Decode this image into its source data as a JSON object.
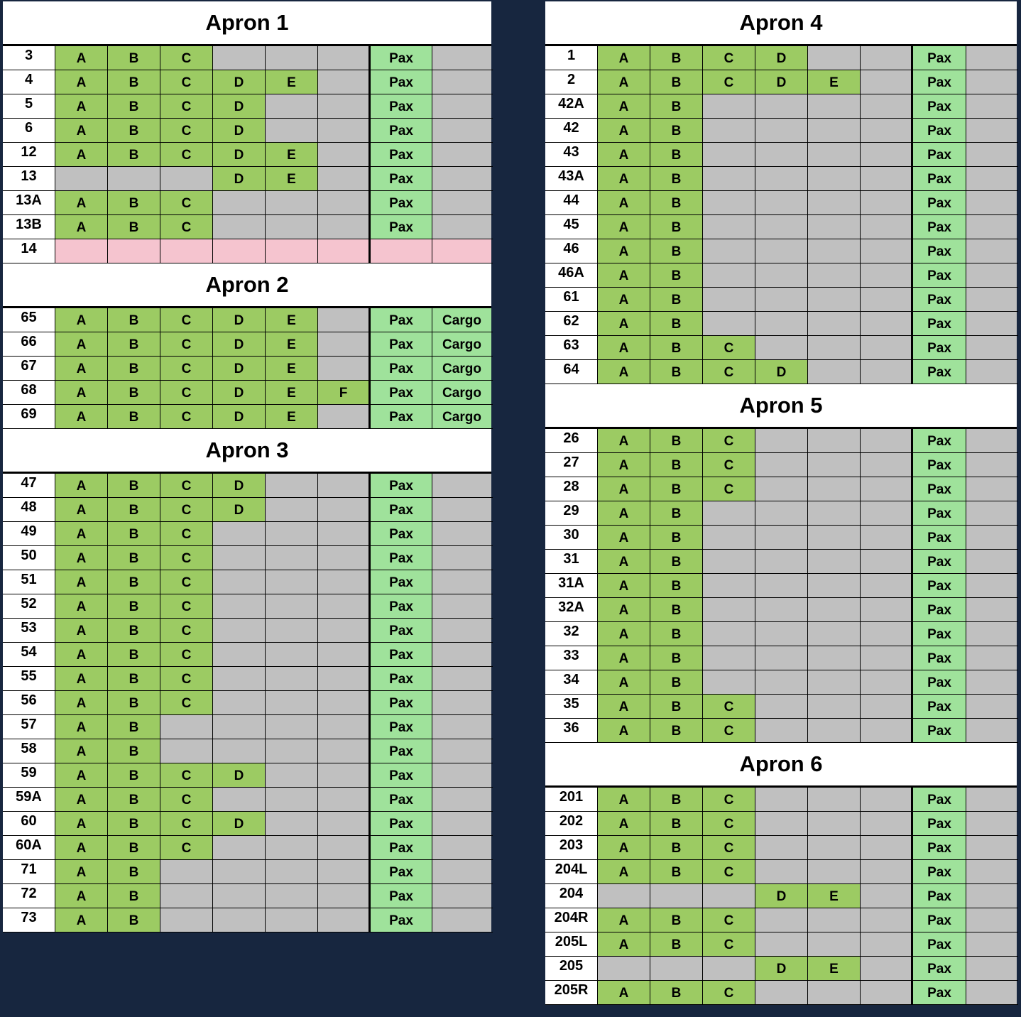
{
  "colors": {
    "background": "#17263f",
    "size_ok": "#9ccb63",
    "pax": "#9fe29b",
    "unavailable": "#c0c0c0",
    "closed": "#f5c4cf"
  },
  "aprons": [
    {
      "title": "Apron 1",
      "column": "left",
      "stands": [
        {
          "stand": "3",
          "slots": [
            "A",
            "B",
            "C",
            "",
            "",
            ""
          ],
          "pax": "Pax",
          "cargo": ""
        },
        {
          "stand": "4",
          "slots": [
            "A",
            "B",
            "C",
            "D",
            "E",
            ""
          ],
          "pax": "Pax",
          "cargo": ""
        },
        {
          "stand": "5",
          "slots": [
            "A",
            "B",
            "C",
            "D",
            "",
            ""
          ],
          "pax": "Pax",
          "cargo": ""
        },
        {
          "stand": "6",
          "slots": [
            "A",
            "B",
            "C",
            "D",
            "",
            ""
          ],
          "pax": "Pax",
          "cargo": ""
        },
        {
          "stand": "12",
          "slots": [
            "A",
            "B",
            "C",
            "D",
            "E",
            ""
          ],
          "pax": "Pax",
          "cargo": ""
        },
        {
          "stand": "13",
          "slots": [
            "",
            "",
            "",
            "D",
            "E",
            ""
          ],
          "pax": "Pax",
          "cargo": ""
        },
        {
          "stand": "13A",
          "slots": [
            "A",
            "B",
            "C",
            "",
            "",
            ""
          ],
          "pax": "Pax",
          "cargo": ""
        },
        {
          "stand": "13B",
          "slots": [
            "A",
            "B",
            "C",
            "",
            "",
            ""
          ],
          "pax": "Pax",
          "cargo": ""
        },
        {
          "stand": "14",
          "slots": [
            "",
            "",
            "",
            "",
            "",
            ""
          ],
          "pax": "",
          "cargo": "",
          "closed": true
        }
      ]
    },
    {
      "title": "Apron 2",
      "column": "left",
      "stands": [
        {
          "stand": "65",
          "slots": [
            "A",
            "B",
            "C",
            "D",
            "E",
            ""
          ],
          "pax": "Pax",
          "cargo": "Cargo"
        },
        {
          "stand": "66",
          "slots": [
            "A",
            "B",
            "C",
            "D",
            "E",
            ""
          ],
          "pax": "Pax",
          "cargo": "Cargo"
        },
        {
          "stand": "67",
          "slots": [
            "A",
            "B",
            "C",
            "D",
            "E",
            ""
          ],
          "pax": "Pax",
          "cargo": "Cargo"
        },
        {
          "stand": "68",
          "slots": [
            "A",
            "B",
            "C",
            "D",
            "E",
            "F"
          ],
          "pax": "Pax",
          "cargo": "Cargo"
        },
        {
          "stand": "69",
          "slots": [
            "A",
            "B",
            "C",
            "D",
            "E",
            ""
          ],
          "pax": "Pax",
          "cargo": "Cargo"
        }
      ]
    },
    {
      "title": "Apron 3",
      "column": "left",
      "stands": [
        {
          "stand": "47",
          "slots": [
            "A",
            "B",
            "C",
            "D",
            "",
            ""
          ],
          "pax": "Pax",
          "cargo": ""
        },
        {
          "stand": "48",
          "slots": [
            "A",
            "B",
            "C",
            "D",
            "",
            ""
          ],
          "pax": "Pax",
          "cargo": ""
        },
        {
          "stand": "49",
          "slots": [
            "A",
            "B",
            "C",
            "",
            "",
            ""
          ],
          "pax": "Pax",
          "cargo": ""
        },
        {
          "stand": "50",
          "slots": [
            "A",
            "B",
            "C",
            "",
            "",
            ""
          ],
          "pax": "Pax",
          "cargo": ""
        },
        {
          "stand": "51",
          "slots": [
            "A",
            "B",
            "C",
            "",
            "",
            ""
          ],
          "pax": "Pax",
          "cargo": ""
        },
        {
          "stand": "52",
          "slots": [
            "A",
            "B",
            "C",
            "",
            "",
            ""
          ],
          "pax": "Pax",
          "cargo": ""
        },
        {
          "stand": "53",
          "slots": [
            "A",
            "B",
            "C",
            "",
            "",
            ""
          ],
          "pax": "Pax",
          "cargo": ""
        },
        {
          "stand": "54",
          "slots": [
            "A",
            "B",
            "C",
            "",
            "",
            ""
          ],
          "pax": "Pax",
          "cargo": ""
        },
        {
          "stand": "55",
          "slots": [
            "A",
            "B",
            "C",
            "",
            "",
            ""
          ],
          "pax": "Pax",
          "cargo": ""
        },
        {
          "stand": "56",
          "slots": [
            "A",
            "B",
            "C",
            "",
            "",
            ""
          ],
          "pax": "Pax",
          "cargo": ""
        },
        {
          "stand": "57",
          "slots": [
            "A",
            "B",
            "",
            "",
            "",
            ""
          ],
          "pax": "Pax",
          "cargo": ""
        },
        {
          "stand": "58",
          "slots": [
            "A",
            "B",
            "",
            "",
            "",
            ""
          ],
          "pax": "Pax",
          "cargo": ""
        },
        {
          "stand": "59",
          "slots": [
            "A",
            "B",
            "C",
            "D",
            "",
            ""
          ],
          "pax": "Pax",
          "cargo": ""
        },
        {
          "stand": "59A",
          "slots": [
            "A",
            "B",
            "C",
            "",
            "",
            ""
          ],
          "pax": "Pax",
          "cargo": ""
        },
        {
          "stand": "60",
          "slots": [
            "A",
            "B",
            "C",
            "D",
            "",
            ""
          ],
          "pax": "Pax",
          "cargo": ""
        },
        {
          "stand": "60A",
          "slots": [
            "A",
            "B",
            "C",
            "",
            "",
            ""
          ],
          "pax": "Pax",
          "cargo": ""
        },
        {
          "stand": "71",
          "slots": [
            "A",
            "B",
            "",
            "",
            "",
            ""
          ],
          "pax": "Pax",
          "cargo": ""
        },
        {
          "stand": "72",
          "slots": [
            "A",
            "B",
            "",
            "",
            "",
            ""
          ],
          "pax": "Pax",
          "cargo": ""
        },
        {
          "stand": "73",
          "slots": [
            "A",
            "B",
            "",
            "",
            "",
            ""
          ],
          "pax": "Pax",
          "cargo": ""
        }
      ]
    },
    {
      "title": "Apron 4",
      "column": "right",
      "stands": [
        {
          "stand": "1",
          "slots": [
            "A",
            "B",
            "C",
            "D",
            "",
            ""
          ],
          "pax": "Pax",
          "cargo": ""
        },
        {
          "stand": "2",
          "slots": [
            "A",
            "B",
            "C",
            "D",
            "E",
            ""
          ],
          "pax": "Pax",
          "cargo": ""
        },
        {
          "stand": "42A",
          "slots": [
            "A",
            "B",
            "",
            "",
            "",
            ""
          ],
          "pax": "Pax",
          "cargo": ""
        },
        {
          "stand": "42",
          "slots": [
            "A",
            "B",
            "",
            "",
            "",
            ""
          ],
          "pax": "Pax",
          "cargo": ""
        },
        {
          "stand": "43",
          "slots": [
            "A",
            "B",
            "",
            "",
            "",
            ""
          ],
          "pax": "Pax",
          "cargo": ""
        },
        {
          "stand": "43A",
          "slots": [
            "A",
            "B",
            "",
            "",
            "",
            ""
          ],
          "pax": "Pax",
          "cargo": ""
        },
        {
          "stand": "44",
          "slots": [
            "A",
            "B",
            "",
            "",
            "",
            ""
          ],
          "pax": "Pax",
          "cargo": ""
        },
        {
          "stand": "45",
          "slots": [
            "A",
            "B",
            "",
            "",
            "",
            ""
          ],
          "pax": "Pax",
          "cargo": ""
        },
        {
          "stand": "46",
          "slots": [
            "A",
            "B",
            "",
            "",
            "",
            ""
          ],
          "pax": "Pax",
          "cargo": ""
        },
        {
          "stand": "46A",
          "slots": [
            "A",
            "B",
            "",
            "",
            "",
            ""
          ],
          "pax": "Pax",
          "cargo": ""
        },
        {
          "stand": "61",
          "slots": [
            "A",
            "B",
            "",
            "",
            "",
            ""
          ],
          "pax": "Pax",
          "cargo": ""
        },
        {
          "stand": "62",
          "slots": [
            "A",
            "B",
            "",
            "",
            "",
            ""
          ],
          "pax": "Pax",
          "cargo": ""
        },
        {
          "stand": "63",
          "slots": [
            "A",
            "B",
            "C",
            "",
            "",
            ""
          ],
          "pax": "Pax",
          "cargo": ""
        },
        {
          "stand": "64",
          "slots": [
            "A",
            "B",
            "C",
            "D",
            "",
            ""
          ],
          "pax": "Pax",
          "cargo": ""
        }
      ]
    },
    {
      "title": "Apron 5",
      "column": "right",
      "stands": [
        {
          "stand": "26",
          "slots": [
            "A",
            "B",
            "C",
            "",
            "",
            ""
          ],
          "pax": "Pax",
          "cargo": ""
        },
        {
          "stand": "27",
          "slots": [
            "A",
            "B",
            "C",
            "",
            "",
            ""
          ],
          "pax": "Pax",
          "cargo": ""
        },
        {
          "stand": "28",
          "slots": [
            "A",
            "B",
            "C",
            "",
            "",
            ""
          ],
          "pax": "Pax",
          "cargo": ""
        },
        {
          "stand": "29",
          "slots": [
            "A",
            "B",
            "",
            "",
            "",
            ""
          ],
          "pax": "Pax",
          "cargo": ""
        },
        {
          "stand": "30",
          "slots": [
            "A",
            "B",
            "",
            "",
            "",
            ""
          ],
          "pax": "Pax",
          "cargo": ""
        },
        {
          "stand": "31",
          "slots": [
            "A",
            "B",
            "",
            "",
            "",
            ""
          ],
          "pax": "Pax",
          "cargo": ""
        },
        {
          "stand": "31A",
          "slots": [
            "A",
            "B",
            "",
            "",
            "",
            ""
          ],
          "pax": "Pax",
          "cargo": ""
        },
        {
          "stand": "32A",
          "slots": [
            "A",
            "B",
            "",
            "",
            "",
            ""
          ],
          "pax": "Pax",
          "cargo": ""
        },
        {
          "stand": "32",
          "slots": [
            "A",
            "B",
            "",
            "",
            "",
            ""
          ],
          "pax": "Pax",
          "cargo": ""
        },
        {
          "stand": "33",
          "slots": [
            "A",
            "B",
            "",
            "",
            "",
            ""
          ],
          "pax": "Pax",
          "cargo": ""
        },
        {
          "stand": "34",
          "slots": [
            "A",
            "B",
            "",
            "",
            "",
            ""
          ],
          "pax": "Pax",
          "cargo": ""
        },
        {
          "stand": "35",
          "slots": [
            "A",
            "B",
            "C",
            "",
            "",
            ""
          ],
          "pax": "Pax",
          "cargo": ""
        },
        {
          "stand": "36",
          "slots": [
            "A",
            "B",
            "C",
            "",
            "",
            ""
          ],
          "pax": "Pax",
          "cargo": ""
        }
      ]
    },
    {
      "title": "Apron 6",
      "column": "right",
      "stands": [
        {
          "stand": "201",
          "slots": [
            "A",
            "B",
            "C",
            "",
            "",
            ""
          ],
          "pax": "Pax",
          "cargo": ""
        },
        {
          "stand": "202",
          "slots": [
            "A",
            "B",
            "C",
            "",
            "",
            ""
          ],
          "pax": "Pax",
          "cargo": ""
        },
        {
          "stand": "203",
          "slots": [
            "A",
            "B",
            "C",
            "",
            "",
            ""
          ],
          "pax": "Pax",
          "cargo": ""
        },
        {
          "stand": "204L",
          "slots": [
            "A",
            "B",
            "C",
            "",
            "",
            ""
          ],
          "pax": "Pax",
          "cargo": ""
        },
        {
          "stand": "204",
          "slots": [
            "",
            "",
            "",
            "D",
            "E",
            ""
          ],
          "pax": "Pax",
          "cargo": ""
        },
        {
          "stand": "204R",
          "slots": [
            "A",
            "B",
            "C",
            "",
            "",
            ""
          ],
          "pax": "Pax",
          "cargo": ""
        },
        {
          "stand": "205L",
          "slots": [
            "A",
            "B",
            "C",
            "",
            "",
            ""
          ],
          "pax": "Pax",
          "cargo": ""
        },
        {
          "stand": "205",
          "slots": [
            "",
            "",
            "",
            "D",
            "E",
            ""
          ],
          "pax": "Pax",
          "cargo": ""
        },
        {
          "stand": "205R",
          "slots": [
            "A",
            "B",
            "C",
            "",
            "",
            ""
          ],
          "pax": "Pax",
          "cargo": ""
        }
      ]
    }
  ]
}
